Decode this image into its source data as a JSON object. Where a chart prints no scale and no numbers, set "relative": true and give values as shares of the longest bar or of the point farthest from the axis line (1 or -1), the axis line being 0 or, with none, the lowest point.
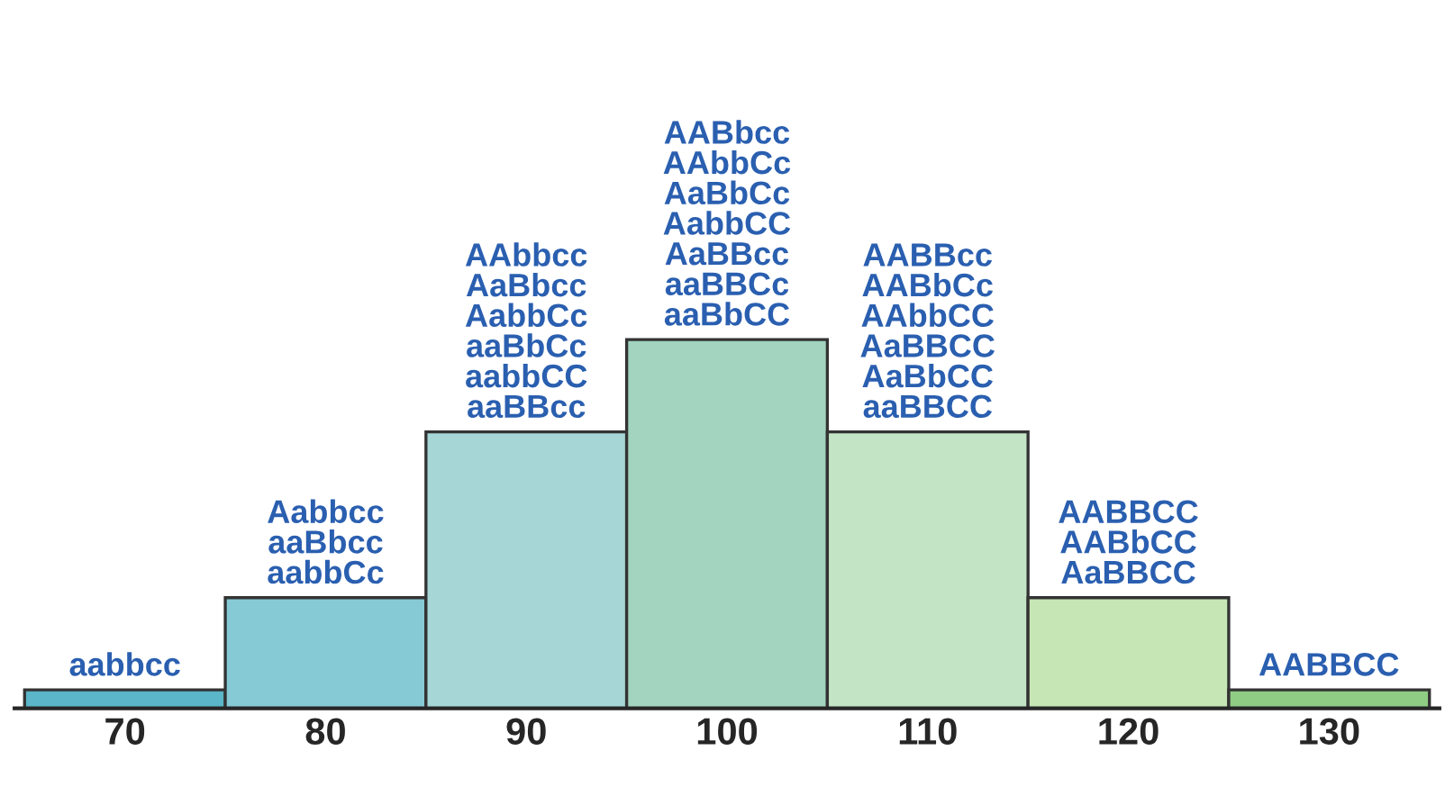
{
  "chart_data": {
    "type": "bar",
    "relative": true,
    "categories": [
      "70",
      "80",
      "90",
      "100",
      "110",
      "120",
      "130"
    ],
    "values": [
      0.05,
      0.3,
      0.75,
      1,
      0.75,
      0.3,
      0.05
    ],
    "colors": [
      "#5ab6c8",
      "#86cad6",
      "#a6d6d6",
      "#a2d4bf",
      "#c4e4c6",
      "#c6e6b6",
      "#8fcc84"
    ],
    "annotations": [
      {
        "text": "aabbcc",
        "x": "70",
        "y": 0.05
      },
      {
        "text": "Aabbcc\naaBbcc\naabbCc",
        "x": "80",
        "y": 0.3
      },
      {
        "text": "AAbbcc\nAaBbcc\nAabbCc\naaBbCc\naabbCC\naaBBcc",
        "x": "90",
        "y": 0.75
      },
      {
        "text": "AABbcc\nAAbbCc\nAaBbCc\nAabbCC\nAaBBcc\naaBBCc\naaBbCC",
        "x": "100",
        "y": 1
      },
      {
        "text": "AABBcc\nAABbCc\nAAbbCC\nAaBBCC\nAaBbCC\naaBBCC",
        "x": "110",
        "y": 0.75
      },
      {
        "text": "AABBCC\nAABbCC\nAaBBCC",
        "x": "120",
        "y": 0.3
      },
      {
        "text": "AABBCC",
        "x": "130",
        "y": 0.05
      }
    ]
  }
}
